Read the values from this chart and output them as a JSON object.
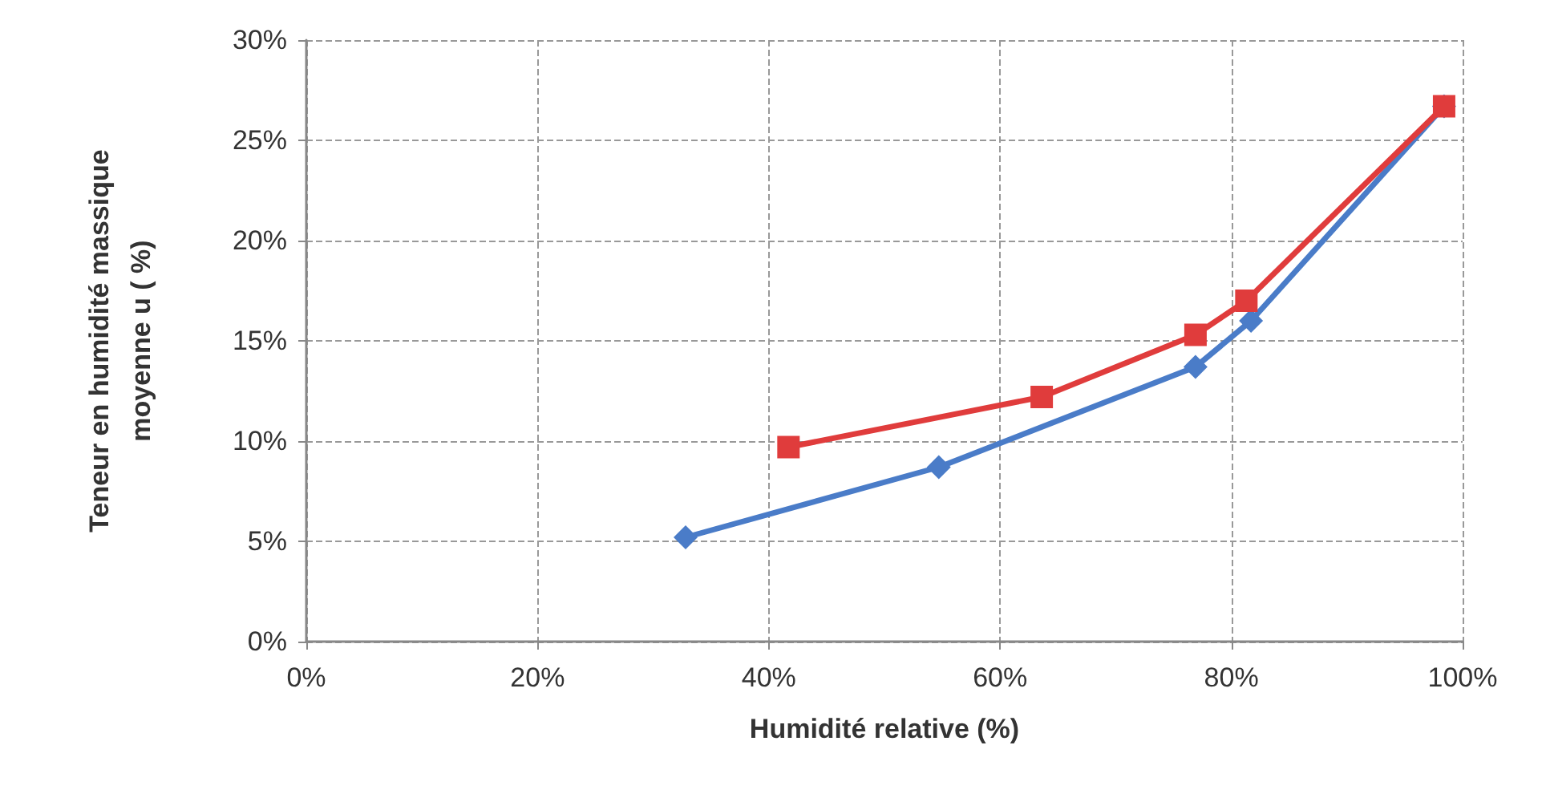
{
  "chart_data": {
    "type": "line",
    "xlabel": "Humidité relative (%)",
    "ylabel": "Teneur en humidité massique moyenne u ( %)",
    "xlim": [
      0,
      100
    ],
    "xticks": [
      {
        "value": 0,
        "label": "0%"
      },
      {
        "value": 20,
        "label": "20%"
      },
      {
        "value": 40,
        "label": "40%"
      },
      {
        "value": 60,
        "label": "60%"
      },
      {
        "value": 80,
        "label": "80%"
      },
      {
        "value": 100,
        "label": "100%"
      }
    ],
    "ylim": [
      0,
      30
    ],
    "yticks": [
      {
        "value": 0,
        "label": "0%"
      },
      {
        "value": 5,
        "label": "5%"
      },
      {
        "value": 10,
        "label": "10%"
      },
      {
        "value": 15,
        "label": "15%"
      },
      {
        "value": 20,
        "label": "20%"
      },
      {
        "value": 25,
        "label": "25%"
      },
      {
        "value": 30,
        "label": "30%"
      }
    ],
    "grid": true,
    "series": [
      {
        "color": "#4a7cc8",
        "marker": "diamond",
        "x": [
          32.8,
          54.7,
          76.9,
          81.7,
          98.4
        ],
        "values": [
          5.2,
          8.7,
          13.7,
          16.0,
          26.7
        ]
      },
      {
        "color": "#e03c3c",
        "marker": "square",
        "x": [
          41.7,
          63.6,
          76.9,
          81.3,
          98.4
        ],
        "values": [
          9.7,
          12.2,
          15.3,
          17.0,
          26.7
        ]
      }
    ]
  }
}
